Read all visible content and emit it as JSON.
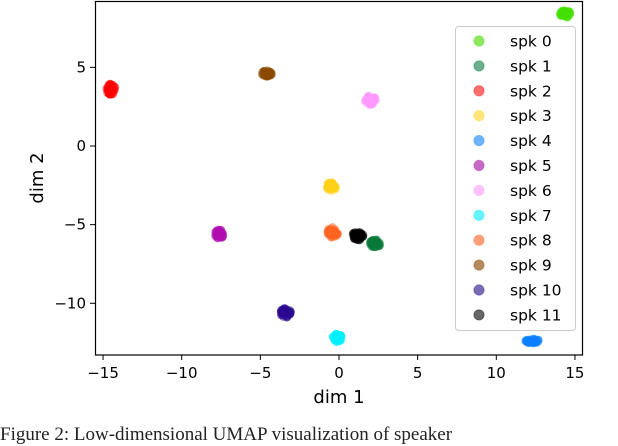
{
  "figure": {
    "caption": "Figure 2: Low-dimensional UMAP visualization of speaker"
  },
  "chart_data": {
    "type": "scatter",
    "title": "",
    "xlabel": "dim 1",
    "ylabel": "dim 2",
    "xlim": [
      -15.5,
      15.5
    ],
    "ylim": [
      -13.2,
      9.2
    ],
    "xticks": [
      -15,
      -10,
      -5,
      0,
      5,
      10,
      15
    ],
    "xtick_labels": [
      "−15",
      "−10",
      "−5",
      "0",
      "5",
      "10",
      "15"
    ],
    "yticks": [
      5,
      0,
      -5,
      -10
    ],
    "ytick_labels": [
      "5",
      "0",
      "−5",
      "−10"
    ],
    "grid": false,
    "legend_position": "upper right",
    "series": [
      {
        "name": "spk 0",
        "color": "#44e000",
        "legend_color": "#8de85f",
        "center": [
          14.4,
          8.4
        ],
        "spread": [
          0.35,
          0.25
        ]
      },
      {
        "name": "spk 1",
        "color": "#0a7a3a",
        "legend_color": "#6ab08f",
        "center": [
          2.3,
          -6.2
        ],
        "spread": [
          0.35,
          0.25
        ]
      },
      {
        "name": "spk 2",
        "color": "#ff0000",
        "legend_color": "#ff6e6e",
        "center": [
          -14.5,
          3.6
        ],
        "spread": [
          0.3,
          0.35
        ]
      },
      {
        "name": "spk 3",
        "color": "#ffd21a",
        "legend_color": "#ffe57a",
        "center": [
          -0.5,
          -2.6
        ],
        "spread": [
          0.3,
          0.3
        ]
      },
      {
        "name": "spk 4",
        "color": "#0a80ff",
        "legend_color": "#6fb3ff",
        "center": [
          12.3,
          -12.4
        ],
        "spread": [
          0.45,
          0.15
        ]
      },
      {
        "name": "spk 5",
        "color": "#b00cb0",
        "legend_color": "#c46ac4",
        "center": [
          -7.6,
          -5.6
        ],
        "spread": [
          0.3,
          0.3
        ]
      },
      {
        "name": "spk 6",
        "color": "#ff99ff",
        "legend_color": "#ffc2ff",
        "center": [
          2.0,
          2.9
        ],
        "spread": [
          0.35,
          0.3
        ]
      },
      {
        "name": "spk 7",
        "color": "#00f0ff",
        "legend_color": "#66f5ff",
        "center": [
          -0.1,
          -12.2
        ],
        "spread": [
          0.3,
          0.3
        ]
      },
      {
        "name": "spk 8",
        "color": "#ff6420",
        "legend_color": "#ffa07a",
        "center": [
          -0.4,
          -5.5
        ],
        "spread": [
          0.35,
          0.35
        ]
      },
      {
        "name": "spk 9",
        "color": "#8b4a00",
        "legend_color": "#b58a5e",
        "center": [
          -4.6,
          4.6
        ],
        "spread": [
          0.35,
          0.2
        ]
      },
      {
        "name": "spk 10",
        "color": "#2a0890",
        "legend_color": "#7a6bb5",
        "center": [
          -3.4,
          -10.6
        ],
        "spread": [
          0.35,
          0.3
        ]
      },
      {
        "name": "spk 11",
        "color": "#000000",
        "legend_color": "#666666",
        "center": [
          1.2,
          -5.7
        ],
        "spread": [
          0.35,
          0.3
        ]
      }
    ]
  }
}
